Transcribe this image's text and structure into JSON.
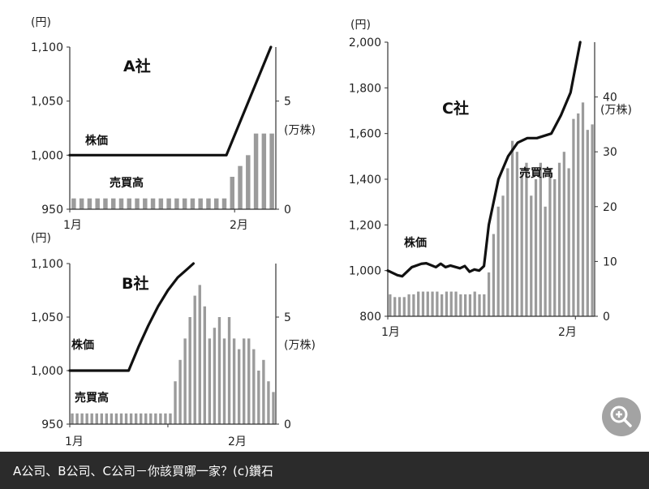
{
  "caption": "A公司、B公司、C公司－你該買哪一家？(c)鑽石",
  "icons": {
    "zoom": "zoom-in-icon"
  },
  "colors": {
    "line": "#111111",
    "bar": "#9b9b9b",
    "axis": "#333333",
    "caption_bg": "#2b2b2b"
  },
  "chart_data": [
    {
      "type": "line+bar",
      "title": "A社",
      "left_unit": "(円)",
      "right_unit": "(万株)",
      "line_label": "株価",
      "bar_label": "売買高",
      "xticks": [
        "1月",
        "2月"
      ],
      "xtick_positions": [
        0,
        20
      ],
      "left_ylim": [
        950,
        1100
      ],
      "left_ticks": [
        "950",
        "1,000",
        "1,050",
        "1,100"
      ],
      "left_tick_values": [
        950,
        1000,
        1050,
        1100
      ],
      "right_ylim": [
        0,
        7.5
      ],
      "right_ticks": [
        "0",
        "5"
      ],
      "right_tick_values": [
        0,
        5
      ],
      "line": [
        [
          0,
          1000
        ],
        [
          19,
          1000
        ],
        [
          24.4,
          1100
        ]
      ],
      "volume": [
        0.5,
        0.5,
        0.5,
        0.5,
        0.5,
        0.5,
        0.5,
        0.5,
        0.5,
        0.5,
        0.5,
        0.5,
        0.5,
        0.5,
        0.5,
        0.5,
        0.5,
        0.5,
        0.5,
        0.5,
        1.5,
        2,
        2.5,
        3.5,
        3.5,
        3.5
      ],
      "x_max": 25
    },
    {
      "type": "line+bar",
      "title": "B社",
      "left_unit": "(円)",
      "right_unit": "(万株)",
      "line_label": "株価",
      "bar_label": "売買高",
      "xticks": [
        "1月",
        "2月"
      ],
      "xtick_positions": [
        0,
        20
      ],
      "left_ylim": [
        950,
        1100
      ],
      "left_ticks": [
        "950",
        "1,000",
        "1,050",
        "1,100"
      ],
      "left_tick_values": [
        950,
        1000,
        1050,
        1100
      ],
      "right_ylim": [
        0,
        7.5
      ],
      "right_ticks": [
        "0",
        "5"
      ],
      "right_tick_values": [
        0,
        5
      ],
      "line": [
        [
          0,
          1000
        ],
        [
          12,
          1000
        ],
        [
          14,
          1022
        ],
        [
          16,
          1042
        ],
        [
          18,
          1060
        ],
        [
          20,
          1075
        ],
        [
          22,
          1087
        ],
        [
          24,
          1095
        ],
        [
          25.2,
          1100
        ]
      ],
      "volume": [
        0.5,
        0.5,
        0.5,
        0.5,
        0.5,
        0.5,
        0.5,
        0.5,
        0.5,
        0.5,
        0.5,
        0.5,
        0.5,
        0.5,
        0.5,
        0.5,
        0.5,
        0.5,
        0.5,
        0.5,
        0.5,
        2,
        3,
        4,
        5,
        6,
        6.5,
        5.5,
        4,
        4.5,
        5,
        4,
        5,
        4,
        3.5,
        4,
        4,
        3.5,
        2.5,
        3,
        2,
        1.5
      ],
      "x_max": 42
    },
    {
      "type": "line+bar",
      "title": "C社",
      "left_unit": "(円)",
      "right_unit": "(万株)",
      "line_label": "株価",
      "bar_label": "売買高",
      "xticks": [
        "1月",
        "2月"
      ],
      "xtick_positions": [
        0,
        39
      ],
      "left_ylim": [
        800,
        2000
      ],
      "left_ticks": [
        "800",
        "1,000",
        "1,200",
        "1,400",
        "1,600",
        "1,800",
        "2,000"
      ],
      "left_tick_values": [
        800,
        1000,
        1200,
        1400,
        1600,
        1800,
        2000
      ],
      "right_ylim": [
        0,
        50
      ],
      "right_ticks": [
        "0",
        "10",
        "20",
        "30",
        "40"
      ],
      "right_tick_values": [
        0,
        10,
        20,
        30,
        40
      ],
      "line": [
        [
          0,
          1000
        ],
        [
          2,
          980
        ],
        [
          3,
          975
        ],
        [
          5,
          1015
        ],
        [
          7,
          1030
        ],
        [
          8,
          1032
        ],
        [
          10,
          1015
        ],
        [
          11,
          1030
        ],
        [
          12,
          1015
        ],
        [
          13,
          1022
        ],
        [
          15,
          1010
        ],
        [
          16,
          1020
        ],
        [
          17,
          995
        ],
        [
          18,
          1005
        ],
        [
          19,
          1000
        ],
        [
          20,
          1020
        ],
        [
          21,
          1200
        ],
        [
          23,
          1400
        ],
        [
          25,
          1500
        ],
        [
          27,
          1560
        ],
        [
          29,
          1580
        ],
        [
          31,
          1580
        ],
        [
          34,
          1600
        ],
        [
          36,
          1680
        ],
        [
          38,
          1780
        ],
        [
          40,
          2000
        ]
      ],
      "volume": [
        4,
        3.5,
        3.5,
        3.5,
        4,
        4,
        4.5,
        4.5,
        4.5,
        4.5,
        4.5,
        4,
        4.5,
        4.5,
        4.5,
        4,
        4,
        4,
        4.5,
        4,
        4,
        8,
        15,
        20,
        22,
        27,
        32,
        30,
        26,
        28,
        22,
        25,
        28,
        20,
        27,
        25,
        28,
        30,
        27,
        36,
        37,
        39,
        34,
        35
      ],
      "x_max": 43
    }
  ]
}
